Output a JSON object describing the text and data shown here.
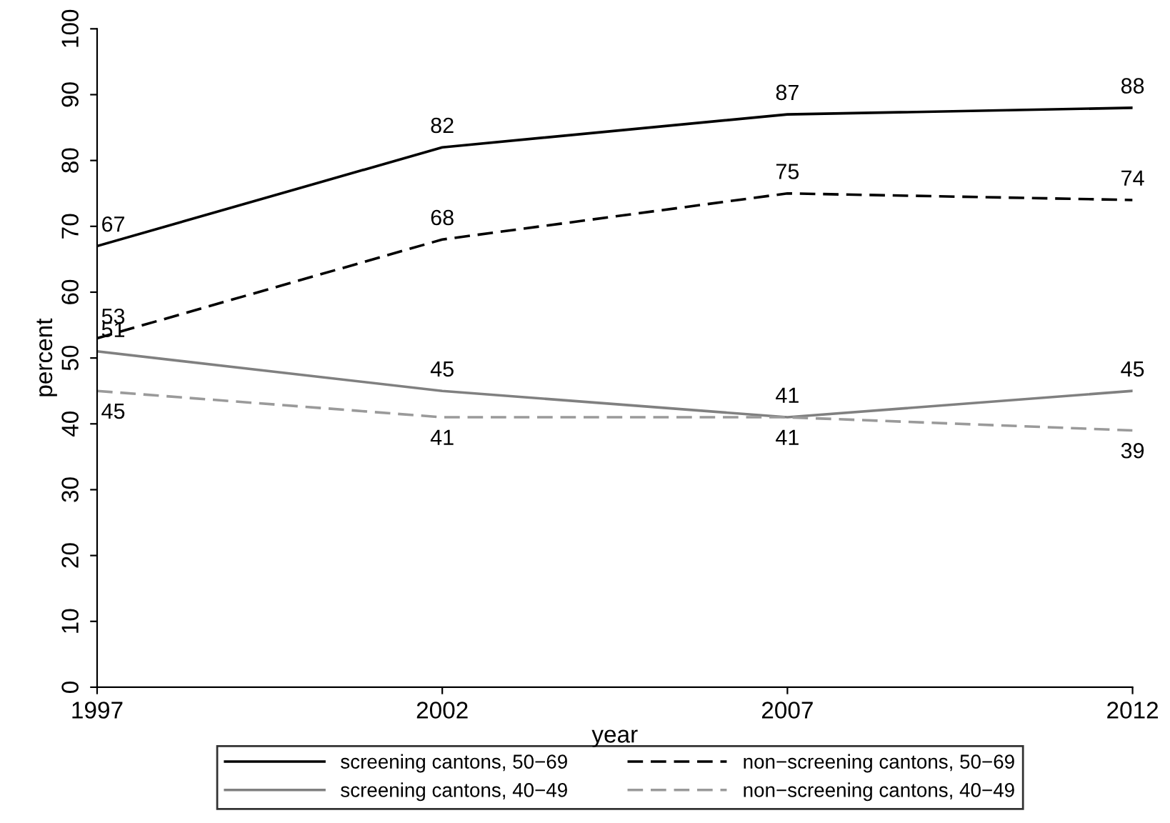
{
  "chart_data": {
    "type": "line",
    "xlabel": "year",
    "ylabel": "percent",
    "x": [
      1997,
      2002,
      2007,
      2012
    ],
    "xlim": [
      1997,
      2012
    ],
    "xticks": [
      1997,
      2002,
      2007,
      2012
    ],
    "ylim": [
      0,
      100
    ],
    "yticks": [
      0,
      10,
      20,
      30,
      40,
      50,
      60,
      70,
      80,
      90,
      100
    ],
    "grid": false,
    "legend": "bottom",
    "marker": "none",
    "data_labels": true,
    "series": [
      {
        "name": "screening cantons, 50−69",
        "color": "#000000",
        "line_style": "solid",
        "values": [
          67,
          82,
          87,
          88
        ]
      },
      {
        "name": "non−screening cantons, 50−69",
        "color": "#000000",
        "line_style": "dashed",
        "values": [
          53,
          68,
          75,
          74
        ]
      },
      {
        "name": "screening cantons, 40−49",
        "color": "#808080",
        "line_style": "solid",
        "values": [
          51,
          45,
          41,
          45
        ]
      },
      {
        "name": "non−screening cantons, 40−49",
        "color": "#9a9a9a",
        "line_style": "dashed",
        "values": [
          45,
          41,
          41,
          39
        ]
      }
    ]
  }
}
